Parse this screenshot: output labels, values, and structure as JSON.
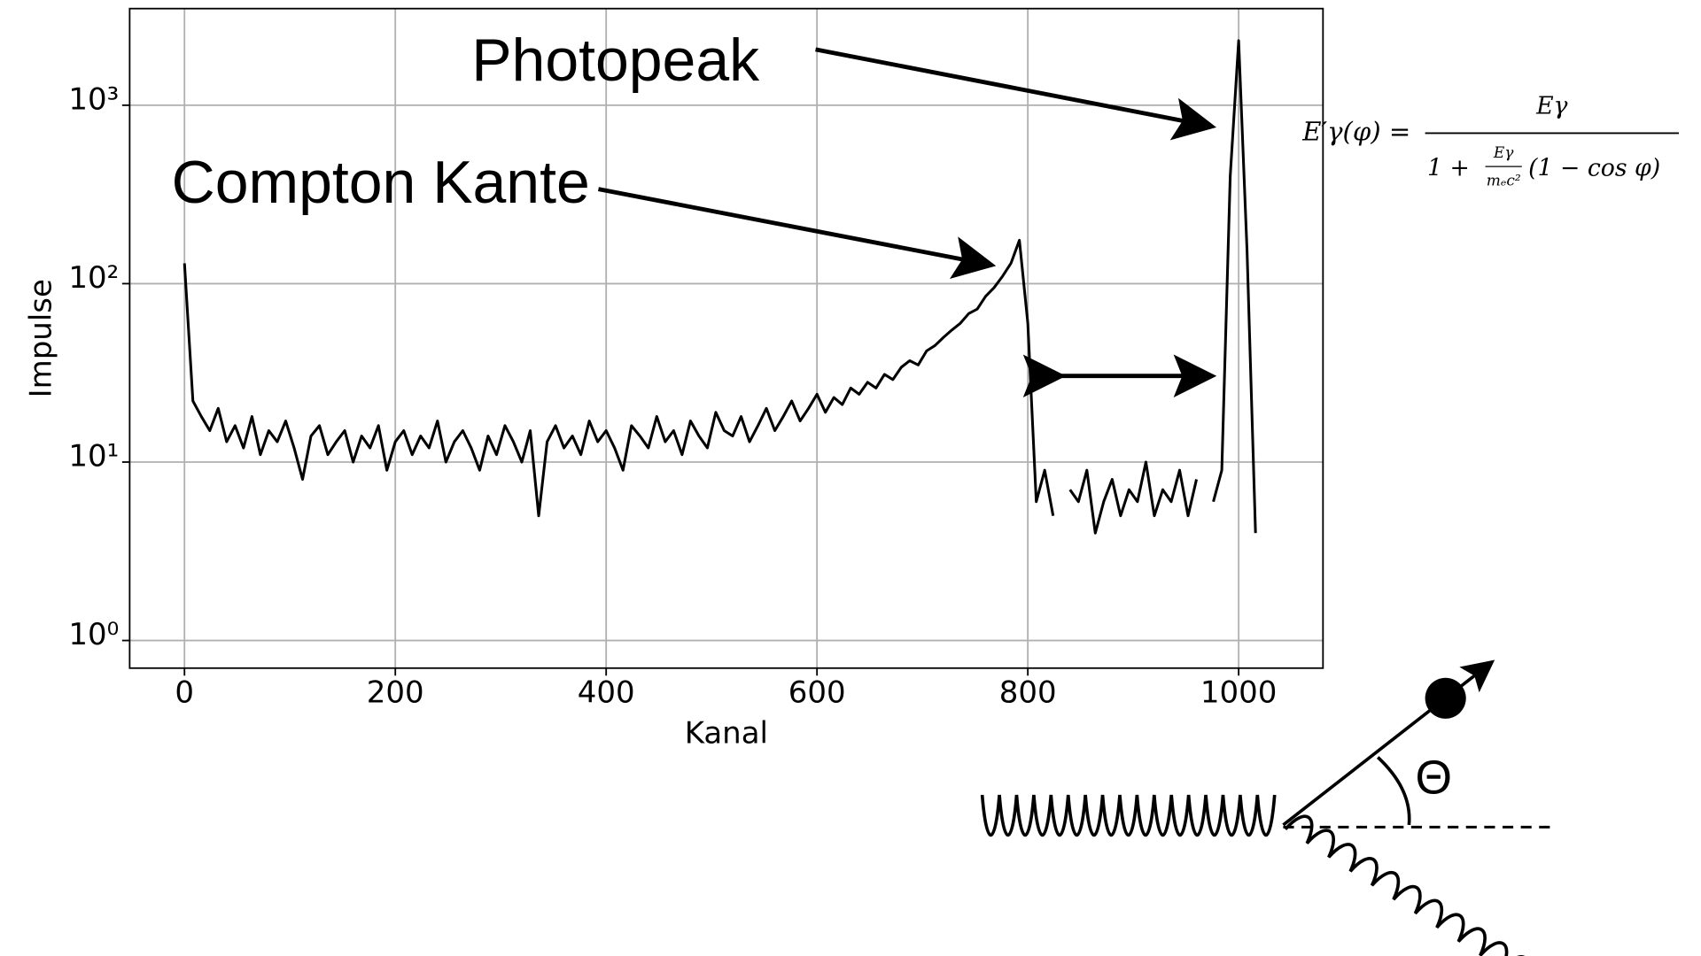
{
  "chart_data": {
    "type": "line",
    "xlabel": "Kanal",
    "ylabel": "Impulse",
    "color": "#000000",
    "log_y": true,
    "grid": true,
    "xlim": [
      -52,
      1080
    ],
    "ylim": [
      0.7,
      3480
    ],
    "xticks": [
      0,
      200,
      400,
      600,
      800,
      1000
    ],
    "yticks": [
      {
        "value": 1,
        "label": "10⁰"
      },
      {
        "value": 10,
        "label": "10¹"
      },
      {
        "value": 100,
        "label": "10²"
      },
      {
        "value": 1000,
        "label": "10³"
      }
    ],
    "x": [
      0,
      8,
      16,
      24,
      32,
      40,
      48,
      56,
      64,
      72,
      80,
      88,
      96,
      104,
      112,
      120,
      128,
      136,
      144,
      152,
      160,
      168,
      176,
      184,
      192,
      200,
      208,
      216,
      224,
      232,
      240,
      248,
      256,
      264,
      272,
      280,
      288,
      296,
      304,
      312,
      320,
      328,
      336,
      344,
      352,
      360,
      368,
      376,
      384,
      392,
      400,
      408,
      416,
      424,
      432,
      440,
      448,
      456,
      464,
      472,
      480,
      488,
      496,
      504,
      512,
      520,
      528,
      536,
      544,
      552,
      560,
      568,
      576,
      584,
      592,
      600,
      608,
      616,
      624,
      632,
      640,
      648,
      656,
      664,
      672,
      680,
      688,
      696,
      704,
      712,
      720,
      728,
      736,
      744,
      752,
      760,
      768,
      776,
      784,
      792,
      800,
      808,
      816,
      824,
      832,
      840,
      848,
      856,
      864,
      872,
      880,
      888,
      896,
      904,
      912,
      920,
      928,
      936,
      944,
      952,
      960,
      968,
      976,
      984,
      992,
      1000,
      1008,
      1016
    ],
    "values": [
      130,
      22,
      18,
      15,
      20,
      13,
      16,
      12,
      18,
      11,
      15,
      13,
      17,
      12,
      8,
      14,
      16,
      11,
      13,
      15,
      10,
      14,
      12,
      16,
      9,
      13,
      15,
      11,
      14,
      12,
      17,
      10,
      13,
      15,
      12,
      9,
      14,
      11,
      16,
      13,
      10,
      15,
      5,
      13,
      16,
      12,
      14,
      11,
      17,
      13,
      15,
      12,
      9,
      16,
      14,
      12,
      18,
      13,
      15,
      11,
      17,
      14,
      12,
      19,
      15,
      14,
      18,
      13,
      16,
      20,
      15,
      18,
      22,
      17,
      20,
      24,
      19,
      23,
      21,
      26,
      24,
      28,
      26,
      31,
      29,
      34,
      37,
      35,
      42,
      45,
      50,
      55,
      60,
      68,
      72,
      85,
      95,
      110,
      130,
      175,
      60,
      6,
      9,
      5,
      null,
      7,
      6,
      9,
      4,
      6,
      8,
      5,
      7,
      6,
      10,
      5,
      7,
      6,
      9,
      5,
      8,
      null,
      6,
      9,
      400,
      2300,
      150,
      4
    ],
    "annotations": [
      "Photopeak",
      "Compton Kante",
      "Θ"
    ],
    "formula": {
      "lhs": "E′γ(φ) =",
      "numerator": "Eγ",
      "denominator_start": "1 +",
      "inner_numerator": "Eγ",
      "inner_denominator": "mₑc²",
      "denominator_end": "(1 − cos φ)"
    }
  }
}
